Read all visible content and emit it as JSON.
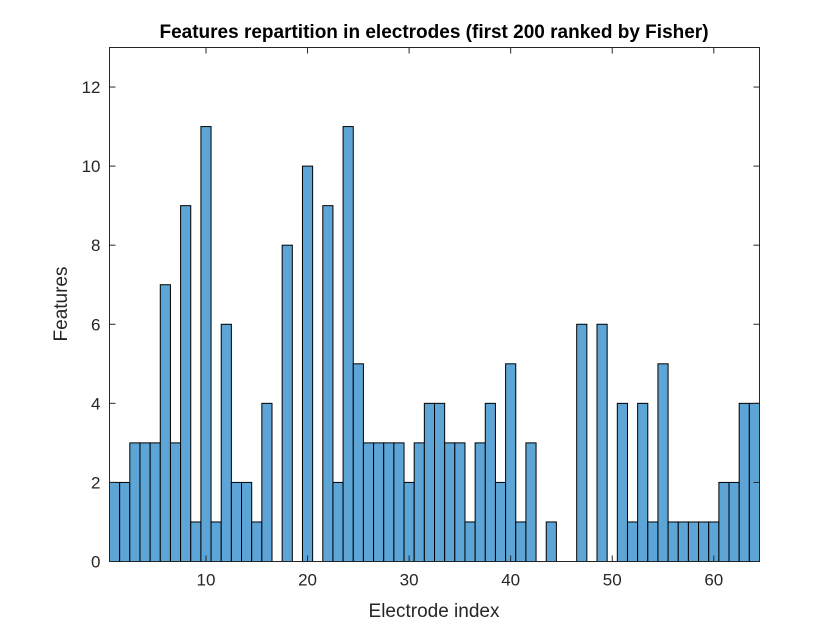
{
  "chart_data": {
    "type": "bar",
    "title": "Features repartition in electrodes (first 200 ranked by Fisher)",
    "xlabel": "Electrode index",
    "ylabel": "Features",
    "x": [
      1,
      2,
      3,
      4,
      5,
      6,
      7,
      8,
      9,
      10,
      11,
      12,
      13,
      14,
      15,
      16,
      17,
      18,
      19,
      20,
      21,
      22,
      23,
      24,
      25,
      26,
      27,
      28,
      29,
      30,
      31,
      32,
      33,
      34,
      35,
      36,
      37,
      38,
      39,
      40,
      41,
      42,
      43,
      44,
      45,
      46,
      47,
      48,
      49,
      50,
      51,
      52,
      53,
      54,
      55,
      56,
      57,
      58,
      59,
      60,
      61,
      62,
      63,
      64
    ],
    "values": [
      2,
      2,
      3,
      3,
      3,
      7,
      3,
      9,
      1,
      11,
      1,
      6,
      2,
      2,
      1,
      4,
      0,
      8,
      0,
      10,
      0,
      9,
      2,
      11,
      5,
      3,
      3,
      3,
      3,
      2,
      3,
      4,
      4,
      3,
      3,
      1,
      3,
      4,
      2,
      5,
      1,
      3,
      0,
      1,
      0,
      0,
      6,
      0,
      6,
      0,
      4,
      1,
      4,
      1,
      5,
      1,
      1,
      1,
      1,
      1,
      2,
      2,
      4,
      4
    ],
    "xlim": [
      0.5,
      64.5
    ],
    "ylim": [
      0,
      13
    ],
    "xticks": [
      10,
      20,
      30,
      40,
      50,
      60
    ],
    "yticks": [
      0,
      2,
      4,
      6,
      8,
      10,
      12
    ],
    "grid": false,
    "bar_color": "#5DA5D6",
    "edge_color": "#000000"
  }
}
